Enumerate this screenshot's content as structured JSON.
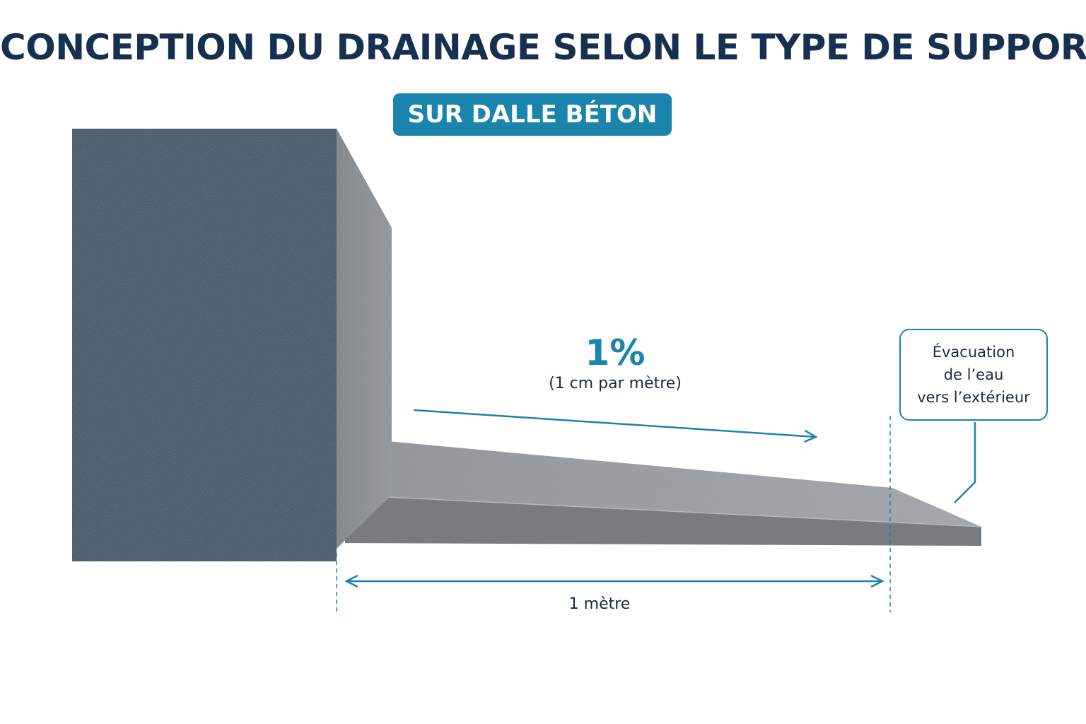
{
  "title": "CONCEPTION DU DRAINAGE SELON LE TYPE DE SUPPORT",
  "badge": "SUR DALLE BÉTON",
  "slope": {
    "percent": "1%",
    "description": "(1 cm par mètre)"
  },
  "callout": {
    "lines": [
      "Évacuation",
      "de l’eau",
      "vers l’extérieur"
    ]
  },
  "length": {
    "label": "1 mètre"
  },
  "colors": {
    "accent": "#1a84ac",
    "title": "#16304f",
    "wall_front": "#3d5468",
    "wall_side": "#868b91",
    "slab_top": "#9a9ea3",
    "slab_front": "#6b6f74"
  }
}
